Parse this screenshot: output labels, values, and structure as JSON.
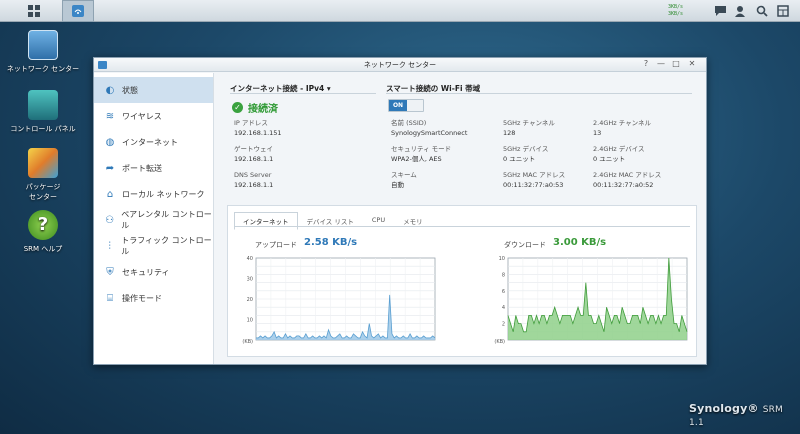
{
  "taskbar": {
    "upload_rate": "3KB/s",
    "download_rate": "3KB/s"
  },
  "desktop": {
    "icons": [
      {
        "label": "ネットワーク センター"
      },
      {
        "label": "コントロール パネル"
      },
      {
        "label": "パッケージ\nセンター"
      },
      {
        "label": "SRM ヘルプ"
      }
    ]
  },
  "window": {
    "title": "ネットワーク センター",
    "controls": {
      "help": "?",
      "minimize": "—",
      "maximize": "□",
      "close": "✕"
    }
  },
  "sidebar": {
    "items": [
      {
        "label": "状態",
        "icon": "status-icon",
        "active": true
      },
      {
        "label": "ワイヤレス",
        "icon": "wifi-icon"
      },
      {
        "label": "インターネット",
        "icon": "globe-icon"
      },
      {
        "label": "ポート転送",
        "icon": "arrow-forward-icon"
      },
      {
        "label": "ローカル ネットワーク",
        "icon": "home-icon"
      },
      {
        "label": "ペアレンタル コントロール",
        "icon": "family-icon"
      },
      {
        "label": "トラフィック コントロール",
        "icon": "sliders-icon"
      },
      {
        "label": "セキュリティ",
        "icon": "shield-icon"
      },
      {
        "label": "操作モード",
        "icon": "router-icon"
      }
    ]
  },
  "internet": {
    "heading": "インターネット接続 - IPv4 ▾",
    "status": "接続済",
    "ip_label": "IP アドレス",
    "ip": "192.168.1.151",
    "gw_label": "ゲートウェイ",
    "gw": "192.168.1.1",
    "dns_label": "DNS Server",
    "dns": "192.168.1.1"
  },
  "wifi": {
    "heading": "スマート接続の Wi-Fi 帯域",
    "toggle": "ON",
    "ssid_label": "名前 (SSID)",
    "ssid": "SynologySmartConnect",
    "sec_label": "セキュリティ モード",
    "sec": "WPA2-個人, AES",
    "scheme_label": "スキーム",
    "scheme": "自動",
    "ch5_label": "5GHz チャンネル",
    "ch5": "128",
    "dev5_label": "5GHz デバイス",
    "dev5": "0 ユニット",
    "mac5_label": "5GHz MAC アドレス",
    "mac5": "00:11:32:77:a0:53",
    "ch24_label": "2.4GHz チャンネル",
    "ch24": "13",
    "dev24_label": "2.4GHz デバイス",
    "dev24": "0 ユニット",
    "mac24_label": "2.4GHz MAC アドレス",
    "mac24": "00:11:32:77:a0:52"
  },
  "monitor": {
    "tabs": [
      "インターネット",
      "デバイス リスト",
      "CPU",
      "メモリ"
    ],
    "upload_label": "アップロード",
    "upload_value": "2.58 KB/s",
    "download_label": "ダウンロード",
    "download_value": "3.00 KB/s"
  },
  "chart_data": [
    {
      "type": "area",
      "ylabel": "(KB)",
      "ylim": [
        0,
        40
      ],
      "yticks": [
        "40",
        "30",
        "20",
        "10"
      ],
      "color": "#9cc8e8",
      "values": [
        1,
        1,
        2,
        1,
        2,
        1,
        1,
        2,
        4,
        1,
        2,
        1,
        1,
        3,
        1,
        2,
        1,
        1,
        2,
        2,
        1,
        1,
        3,
        1,
        1,
        2,
        1,
        1,
        2,
        1,
        2,
        1,
        5,
        2,
        1,
        1,
        2,
        3,
        1,
        1,
        2,
        1,
        1,
        3,
        2,
        1,
        1,
        4,
        2,
        1,
        8,
        2,
        1,
        2,
        3,
        1,
        2,
        1,
        1,
        22,
        3,
        1,
        2,
        1,
        1,
        2,
        1,
        1,
        3,
        1,
        1,
        2,
        1,
        1,
        2,
        1,
        1,
        1,
        2,
        1
      ]
    },
    {
      "type": "area",
      "ylabel": "(KB)",
      "ylim": [
        0,
        10
      ],
      "yticks": [
        "10",
        "8",
        "6",
        "4",
        "2"
      ],
      "color": "#8fd08a",
      "values": [
        3,
        2,
        1,
        3,
        2,
        2,
        1,
        1,
        3,
        3,
        2,
        3,
        2,
        3,
        3,
        2,
        3,
        3,
        4,
        3,
        2,
        3,
        3,
        3,
        3,
        2,
        3,
        4,
        3,
        3,
        7,
        3,
        3,
        2,
        2,
        3,
        2,
        1,
        4,
        3,
        2,
        3,
        3,
        2,
        4,
        3,
        2,
        2,
        3,
        3,
        3,
        2,
        4,
        3,
        2,
        3,
        3,
        2,
        3,
        2,
        3,
        3,
        10,
        5,
        2,
        2,
        1,
        3,
        2,
        1
      ]
    }
  ],
  "brand": {
    "name": "Synology®",
    "product": "SRM 1.1"
  }
}
